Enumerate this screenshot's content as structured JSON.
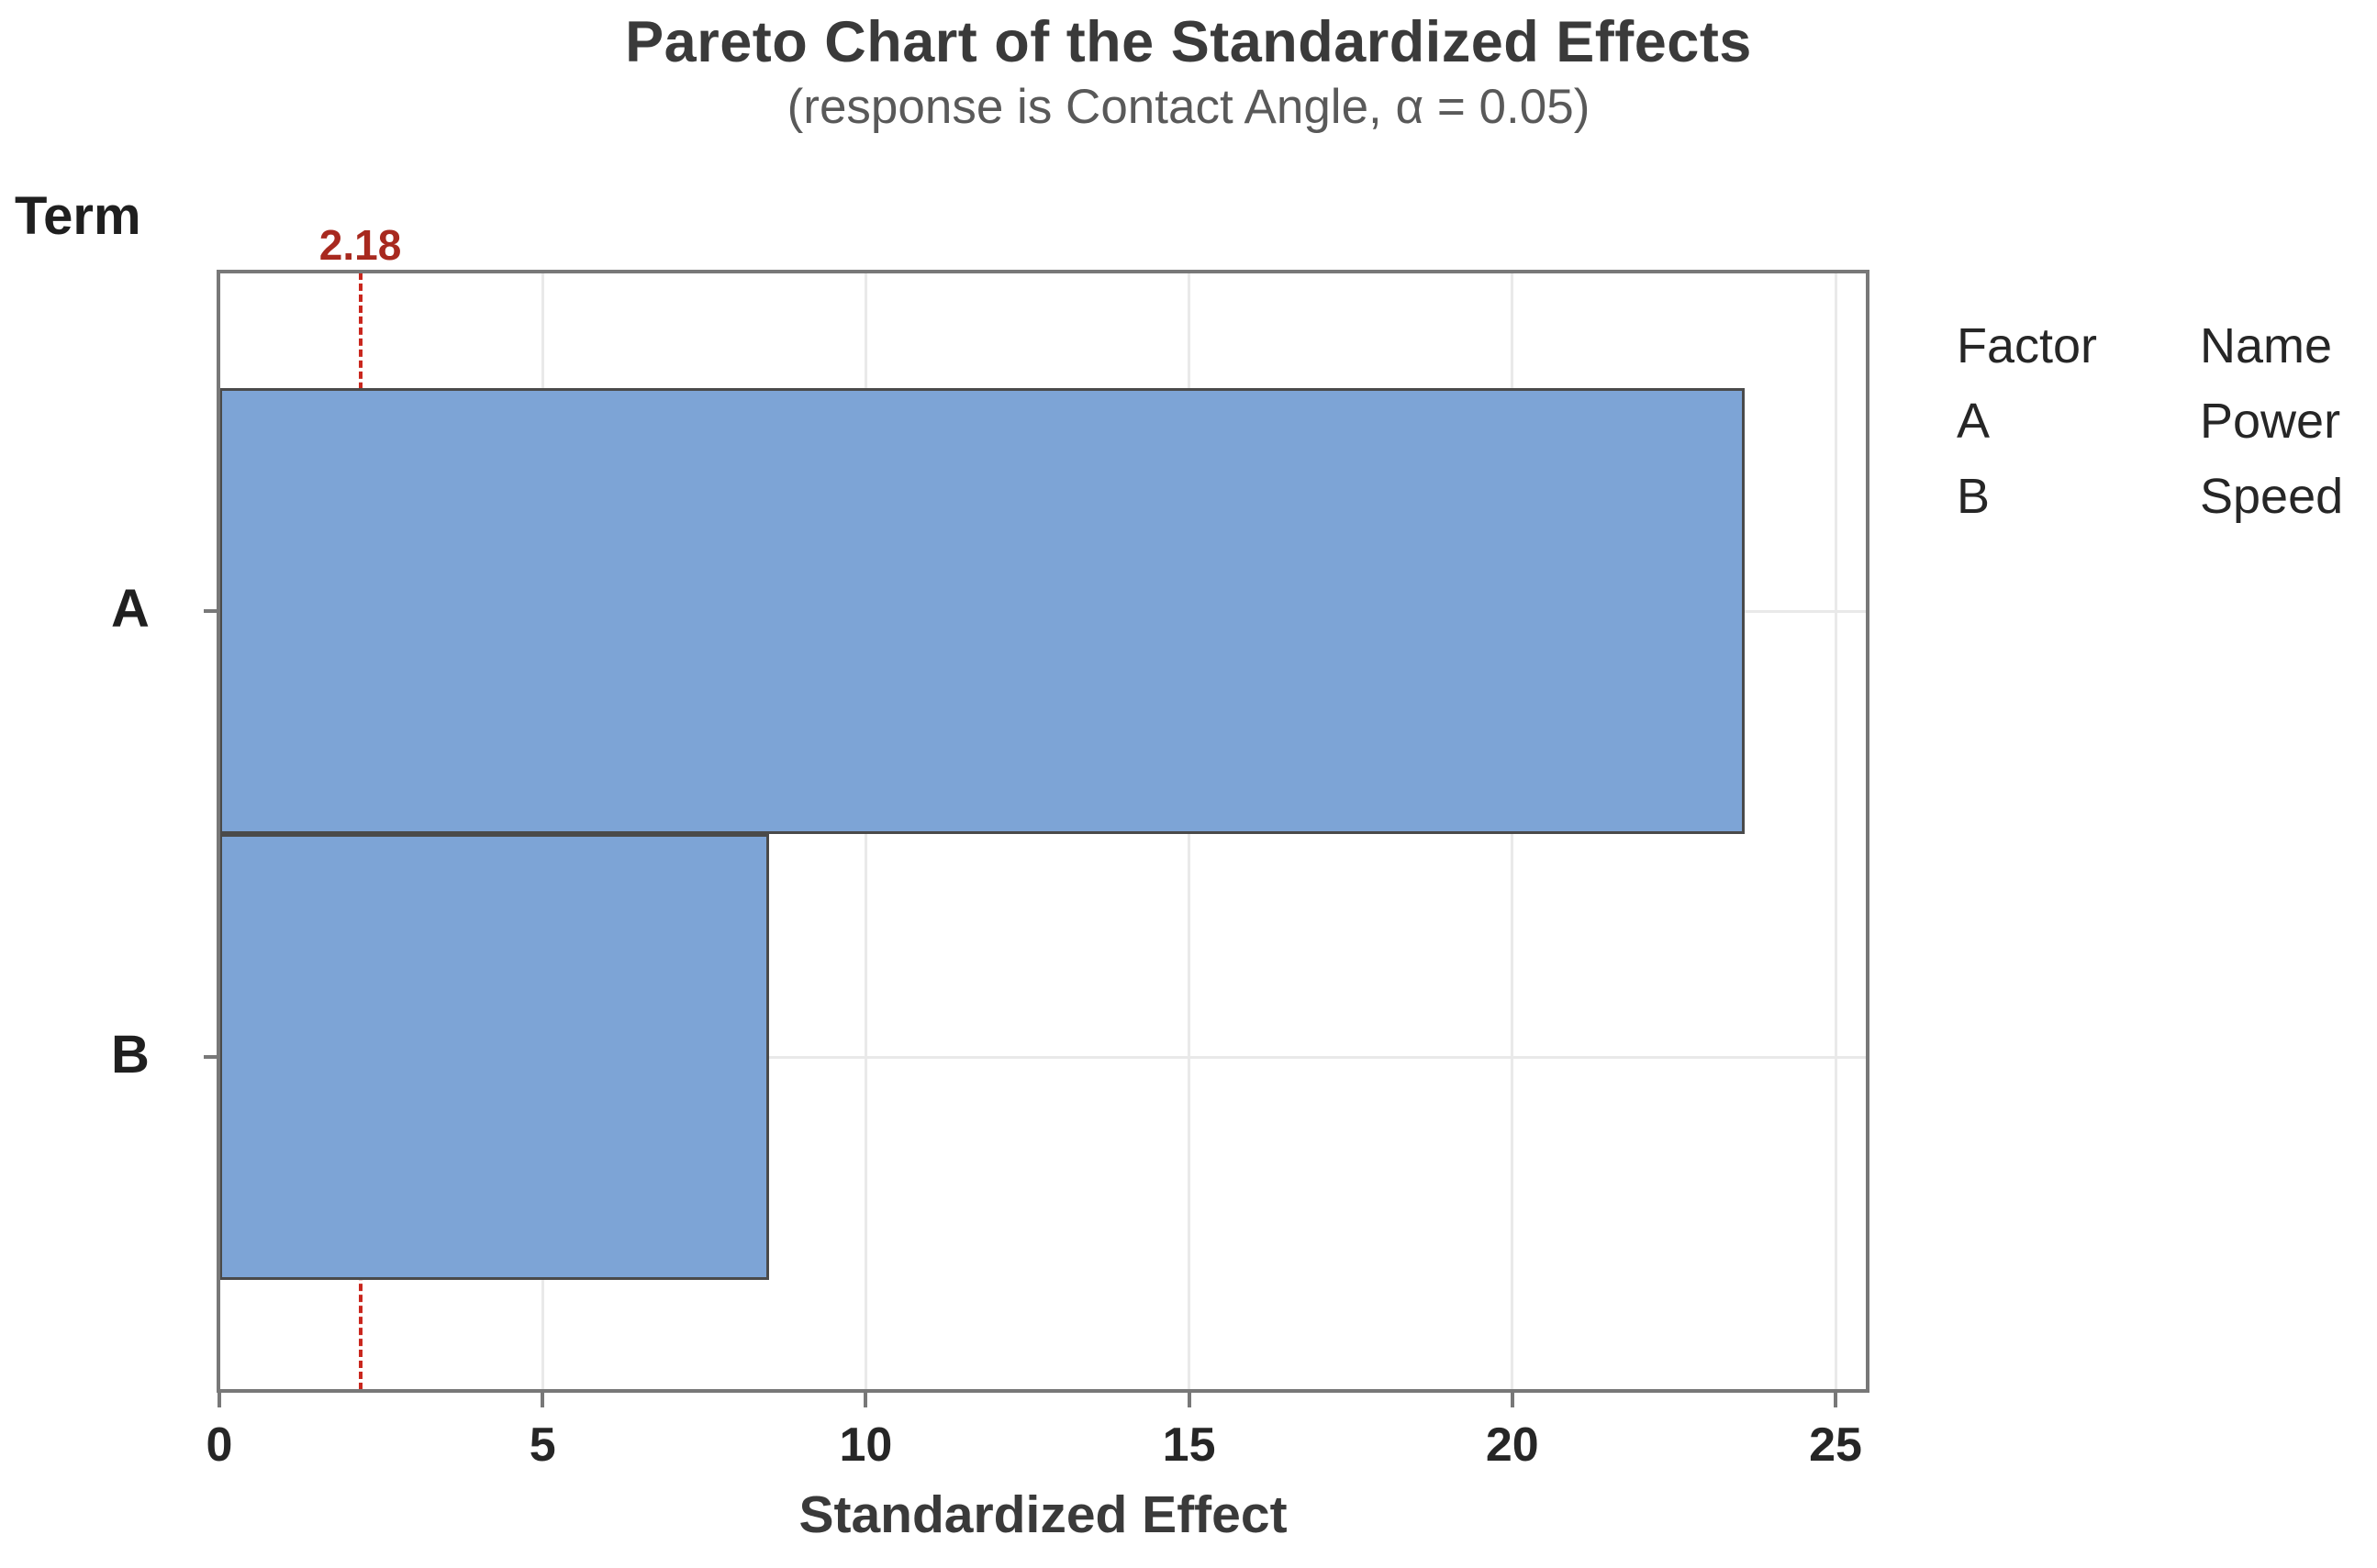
{
  "title": "Pareto Chart of the Standardized Effects",
  "subtitle": "(response is Contact Angle, α = 0.05)",
  "y_axis_title": "Term",
  "x_axis_title": "Standardized Effect",
  "legend": {
    "headers": [
      "Factor",
      "Name"
    ],
    "rows": [
      {
        "factor": "A",
        "name": "Power"
      },
      {
        "factor": "B",
        "name": "Speed"
      }
    ]
  },
  "chart_data": {
    "type": "bar",
    "orientation": "horizontal",
    "title": "Pareto Chart of the Standardized Effects",
    "subtitle": "(response is Contact Angle, α = 0.05)",
    "categories": [
      "A",
      "B"
    ],
    "values": [
      23.6,
      8.5
    ],
    "xlabel": "Standardized Effect",
    "ylabel": "Term",
    "xlim": [
      0,
      25.5
    ],
    "xticks": [
      0,
      5,
      10,
      15,
      20,
      25
    ],
    "grid": true,
    "legend_position": "right",
    "reference_line": {
      "value": 2.18,
      "label": "2.18"
    }
  },
  "colors": {
    "bar_fill": "#7da4d6",
    "bar_border": "#4a4a4a",
    "plot_border": "#787878",
    "gridline": "#e9e9e9",
    "reference_line": "#c9271e",
    "reference_label": "#a8291f",
    "title_text": "#3a3a3a",
    "subtitle_text": "#595959",
    "axis_text": "#262626",
    "axis_title_text": "#3a3a3a",
    "background": "#ffffff"
  }
}
